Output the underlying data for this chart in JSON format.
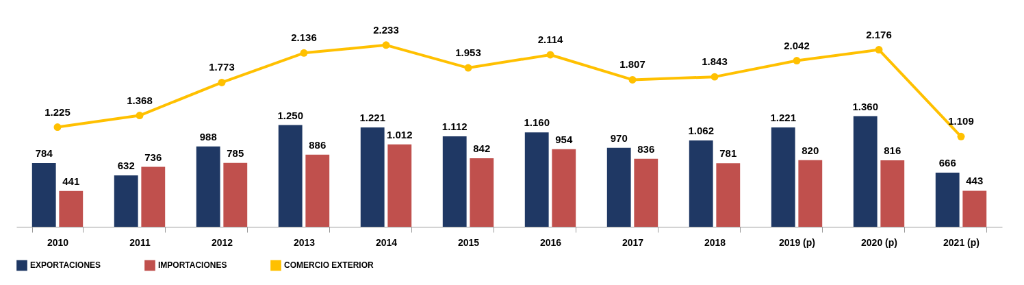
{
  "chart_data": {
    "type": "bar",
    "categories": [
      "2010",
      "2011",
      "2012",
      "2013",
      "2014",
      "2015",
      "2016",
      "2017",
      "2018",
      "2019 (p)",
      "2020 (p)",
      "2021 (p)"
    ],
    "series": [
      {
        "name": "EXPORTACIONES",
        "color": "#1f3864",
        "values": [
          784,
          632,
          988,
          1250,
          1221,
          1112,
          1160,
          970,
          1062,
          1221,
          1360,
          666
        ],
        "value_labels": [
          "784",
          "632",
          "988",
          "1.250",
          "1.221",
          "1.112",
          "1.160",
          "970",
          "1.062",
          "1.221",
          "1.360",
          "666"
        ]
      },
      {
        "name": "IMPORTACIONES",
        "color": "#c0504d",
        "values": [
          441,
          736,
          785,
          886,
          1012,
          842,
          954,
          836,
          781,
          820,
          816,
          443
        ],
        "value_labels": [
          "441",
          "736",
          "785",
          "886",
          "1.012",
          "842",
          "954",
          "836",
          "781",
          "820",
          "816",
          "443"
        ]
      },
      {
        "name": "COMERCIO EXTERIOR",
        "type": "line",
        "color": "#ffc000",
        "values": [
          1225,
          1368,
          1773,
          2136,
          2233,
          1953,
          2114,
          1807,
          1843,
          2042,
          2176,
          1109
        ],
        "value_labels": [
          "1.225",
          "1.368",
          "1.773",
          "2.136",
          "2.233",
          "1.953",
          "2.114",
          "1.807",
          "1.843",
          "2.042",
          "2.176",
          "1.109"
        ]
      }
    ],
    "legend": "bottom",
    "marker": "circle",
    "tick_labels": "x"
  }
}
